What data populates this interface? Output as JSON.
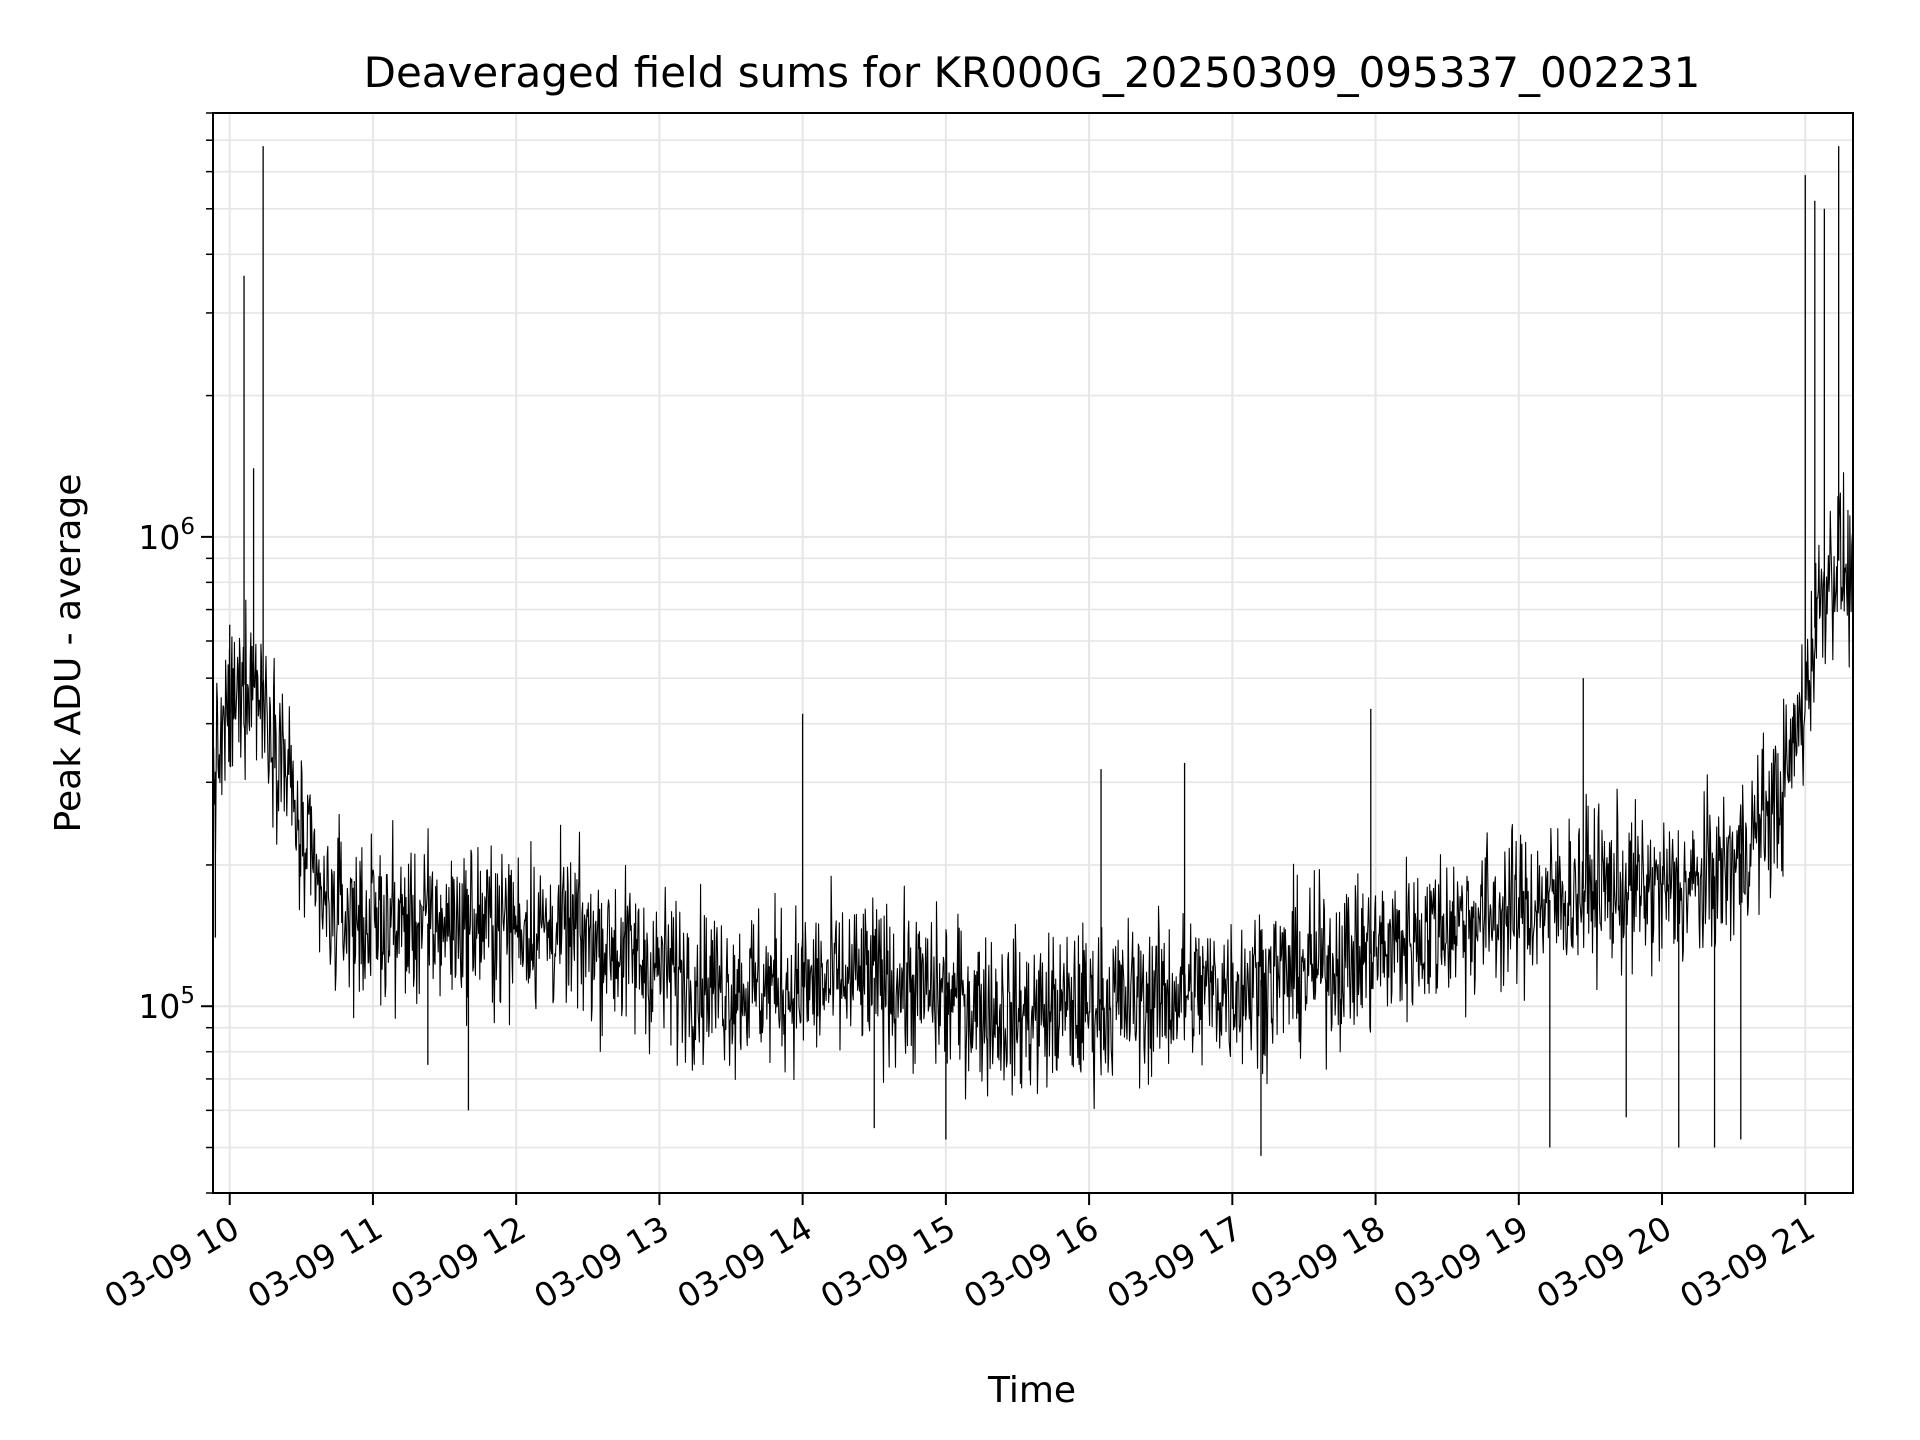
{
  "chart_data": {
    "type": "line",
    "title": "Deaveraged field sums for KR000G_20250309_095337_002231",
    "xlabel": "Time",
    "ylabel": "Peak ADU - average",
    "yscale": "log",
    "xlim": [
      "03-09 09:53",
      "03-09 21:20"
    ],
    "ylim": [
      40000,
      8000000
    ],
    "grid": true,
    "line_color": "#000000",
    "grid_color": "#e6e6e6",
    "x_ticks": [
      {
        "time": "03-09 10:00",
        "label": "03-09 10"
      },
      {
        "time": "03-09 11:00",
        "label": "03-09 11"
      },
      {
        "time": "03-09 12:00",
        "label": "03-09 12"
      },
      {
        "time": "03-09 13:00",
        "label": "03-09 13"
      },
      {
        "time": "03-09 14:00",
        "label": "03-09 14"
      },
      {
        "time": "03-09 15:00",
        "label": "03-09 15"
      },
      {
        "time": "03-09 16:00",
        "label": "03-09 16"
      },
      {
        "time": "03-09 17:00",
        "label": "03-09 17"
      },
      {
        "time": "03-09 18:00",
        "label": "03-09 18"
      },
      {
        "time": "03-09 19:00",
        "label": "03-09 19"
      },
      {
        "time": "03-09 20:00",
        "label": "03-09 20"
      },
      {
        "time": "03-09 21:00",
        "label": "03-09 21"
      }
    ],
    "y_major_ticks": [
      {
        "value": 100000,
        "base": "10",
        "exp": "5"
      },
      {
        "value": 1000000,
        "base": "10",
        "exp": "6"
      }
    ],
    "series": [
      {
        "x": [
          "03-09 09:53",
          "03-09 09:56",
          "03-09 10:00",
          "03-09 10:04",
          "03-09 10:08",
          "03-09 10:12",
          "03-09 10:16",
          "03-09 10:20",
          "03-09 10:24",
          "03-09 10:30",
          "03-09 10:40",
          "03-09 11:00",
          "03-09 11:30",
          "03-09 12:00",
          "03-09 12:30",
          "03-09 13:00",
          "03-09 13:30",
          "03-09 14:00",
          "03-09 14:30",
          "03-09 15:00",
          "03-09 15:30",
          "03-09 16:00",
          "03-09 16:30",
          "03-09 17:00",
          "03-09 17:30",
          "03-09 18:00",
          "03-09 18:30",
          "03-09 19:00",
          "03-09 19:30",
          "03-09 20:00",
          "03-09 20:15",
          "03-09 20:30",
          "03-09 20:40",
          "03-09 20:50",
          "03-09 21:00",
          "03-09 21:05",
          "03-09 21:10",
          "03-09 21:15",
          "03-09 21:20"
        ],
        "y": [
          300000,
          350000,
          420000,
          450000,
          520000,
          480000,
          420000,
          380000,
          320000,
          220000,
          160000,
          150000,
          150000,
          150000,
          140000,
          120000,
          110000,
          110000,
          115000,
          105000,
          95000,
          100000,
          105000,
          110000,
          120000,
          130000,
          150000,
          160000,
          180000,
          175000,
          180000,
          200000,
          240000,
          280000,
          450000,
          700000,
          850000,
          900000,
          750000
        ],
        "spikes": [
          {
            "x": "03-09 09:54",
            "y": 140000
          },
          {
            "x": "03-09 10:00",
            "y": 650000
          },
          {
            "x": "03-09 10:06",
            "y": 3600000
          },
          {
            "x": "03-09 10:10",
            "y": 1400000
          },
          {
            "x": "03-09 10:14",
            "y": 6800000
          },
          {
            "x": "03-09 11:23",
            "y": 75000
          },
          {
            "x": "03-09 11:40",
            "y": 60000
          },
          {
            "x": "03-09 14:00",
            "y": 420000
          },
          {
            "x": "03-09 14:30",
            "y": 55000
          },
          {
            "x": "03-09 15:00",
            "y": 52000
          },
          {
            "x": "03-09 16:05",
            "y": 320000
          },
          {
            "x": "03-09 16:40",
            "y": 330000
          },
          {
            "x": "03-09 17:12",
            "y": 48000
          },
          {
            "x": "03-09 17:58",
            "y": 430000
          },
          {
            "x": "03-09 19:13",
            "y": 50000
          },
          {
            "x": "03-09 19:27",
            "y": 500000
          },
          {
            "x": "03-09 19:45",
            "y": 58000
          },
          {
            "x": "03-09 20:07",
            "y": 50000
          },
          {
            "x": "03-09 20:22",
            "y": 50000
          },
          {
            "x": "03-09 20:33",
            "y": 52000
          },
          {
            "x": "03-09 21:00",
            "y": 5900000
          },
          {
            "x": "03-09 21:04",
            "y": 5200000
          },
          {
            "x": "03-09 21:08",
            "y": 5000000
          },
          {
            "x": "03-09 21:14",
            "y": 6800000
          }
        ]
      }
    ]
  }
}
